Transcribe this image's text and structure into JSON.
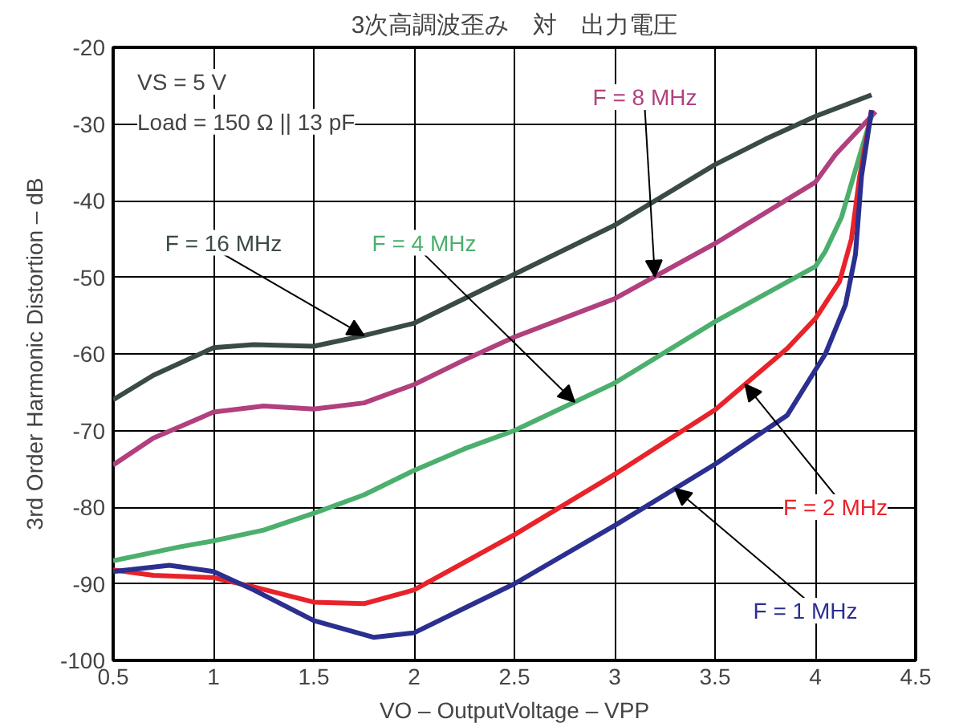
{
  "chart_data": {
    "type": "line",
    "title": "3次高調波歪み　対　出力電圧",
    "xlabel": "VO – OutputVoltage – VPP",
    "ylabel": "3rd Order Harmonic Distortion – dB",
    "xlim": [
      0.5,
      4.5
    ],
    "xticks": [
      0.5,
      1,
      1.5,
      2,
      2.5,
      3,
      3.5,
      4,
      4.5
    ],
    "ylim": [
      -100,
      -20
    ],
    "yticks": [
      -100,
      -90,
      -80,
      -70,
      -60,
      -50,
      -40,
      -30,
      -20
    ],
    "grid": true,
    "legend": false,
    "line_style": "solid",
    "marker": "none",
    "annotations": [
      "VS = 5 V",
      "Load = 150 Ω || 13 pF"
    ],
    "series": [
      {
        "name": "F = 16 MHz",
        "color": "#3a4a44",
        "x": [
          0.5,
          0.7,
          1.0,
          1.2,
          1.5,
          1.75,
          2.0,
          2.25,
          2.5,
          3.0,
          3.5,
          3.75,
          4.0,
          4.28
        ],
        "values": [
          -66,
          -62.8,
          -59.2,
          -58.8,
          -59,
          -57.6,
          -56,
          -52.8,
          -49.6,
          -43.2,
          -35.3,
          -32,
          -29,
          -26.2
        ]
      },
      {
        "name": "F = 8 MHz",
        "color": "#b0407e",
        "x": [
          0.5,
          0.7,
          1.0,
          1.25,
          1.5,
          1.75,
          2.0,
          2.25,
          2.5,
          3.0,
          3.5,
          4.0,
          4.1,
          4.3
        ],
        "values": [
          -74.5,
          -71,
          -67.6,
          -66.8,
          -67.2,
          -66.4,
          -64,
          -60.8,
          -57.8,
          -52.8,
          -45.6,
          -37.6,
          -34,
          -28.4
        ]
      },
      {
        "name": "F = 4 MHz",
        "color": "#4caf6e",
        "x": [
          0.5,
          0.83,
          1.0,
          1.25,
          1.5,
          1.75,
          2.0,
          2.25,
          2.5,
          3.0,
          3.5,
          4.0,
          4.05,
          4.13,
          4.22,
          4.28
        ],
        "values": [
          -87,
          -85.2,
          -84.4,
          -83,
          -80.8,
          -78.4,
          -75.2,
          -72.4,
          -70,
          -63.8,
          -55.8,
          -48.6,
          -46.6,
          -42.2,
          -34.2,
          -29
        ]
      },
      {
        "name": "F = 2 MHz",
        "color": "#e8232a",
        "x": [
          0.5,
          0.7,
          1.0,
          1.2,
          1.5,
          1.75,
          2.0,
          2.25,
          2.5,
          3.0,
          3.5,
          3.86,
          4.0,
          4.12,
          4.18,
          4.22,
          4.28
        ],
        "values": [
          -88.2,
          -88.9,
          -89.2,
          -90.4,
          -92.4,
          -92.6,
          -90.8,
          -87.2,
          -83.6,
          -75.7,
          -67.3,
          -59.3,
          -55.4,
          -50.6,
          -45,
          -37,
          -28.2
        ]
      },
      {
        "name": "F = 1 MHz",
        "color": "#2b2f8f",
        "x": [
          0.5,
          0.78,
          1.0,
          1.2,
          1.5,
          1.8,
          2.0,
          2.25,
          2.5,
          3.0,
          3.5,
          3.86,
          4.05,
          4.15,
          4.2,
          4.23,
          4.28
        ],
        "values": [
          -88.4,
          -87.6,
          -88.4,
          -90.8,
          -94.8,
          -97,
          -96.4,
          -93.2,
          -90,
          -82.4,
          -74.4,
          -68,
          -60,
          -53.6,
          -47,
          -36.8,
          -28.2
        ]
      }
    ]
  }
}
